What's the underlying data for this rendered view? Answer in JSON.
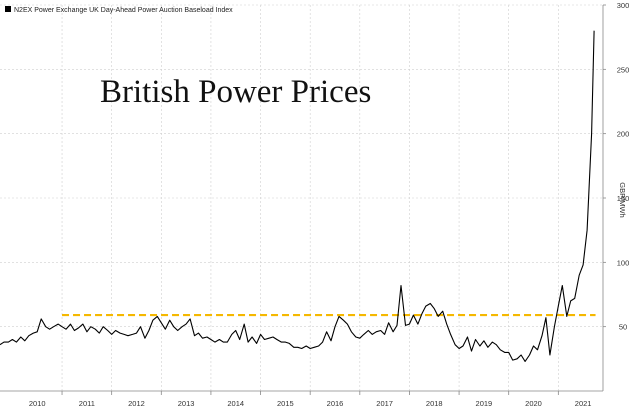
{
  "colors": {
    "background": "#ffffff",
    "grid": "#cfcfcf",
    "line": "#000000",
    "reference_line": "#f5b800",
    "text": "#333333"
  },
  "chart_data": {
    "type": "line",
    "title": "British Power Prices",
    "legend": {
      "label": "N2EX Power Exchange UK Day-Ahead Power Auction Baseload Index",
      "position": "top-left"
    },
    "ylabel": "GBP/MWh",
    "y_axis_side": "right",
    "ylim": [
      0,
      300
    ],
    "y_ticks": [
      50,
      100,
      150,
      200,
      250,
      300
    ],
    "xlim": [
      2009.75,
      2021.9
    ],
    "x_tick_labels": [
      {
        "label": "2010",
        "x": 2010.5
      },
      {
        "label": "2011",
        "x": 2011.5
      },
      {
        "label": "2012",
        "x": 2012.5
      },
      {
        "label": "2013",
        "x": 2013.5
      },
      {
        "label": "2014",
        "x": 2014.5
      },
      {
        "label": "2015",
        "x": 2015.5
      },
      {
        "label": "2016",
        "x": 2016.5
      },
      {
        "label": "2017",
        "x": 2017.5
      },
      {
        "label": "2018",
        "x": 2018.5
      },
      {
        "label": "2019",
        "x": 2019.5
      },
      {
        "label": "2020",
        "x": 2020.5
      },
      {
        "label": "2021",
        "x": 2021.5
      }
    ],
    "year_boundaries": [
      2011,
      2012,
      2013,
      2014,
      2015,
      2016,
      2017,
      2018,
      2019,
      2020,
      2021
    ],
    "grid": true,
    "reference_line": {
      "y": 59,
      "x_start": 2011.0,
      "x_end": 2021.75,
      "style": "dashed"
    },
    "series": [
      {
        "x": [
          2009.75,
          2009.83,
          2009.92,
          2010.0,
          2010.08,
          2010.17,
          2010.25,
          2010.33,
          2010.42,
          2010.5,
          2010.58,
          2010.67,
          2010.75,
          2010.83,
          2010.92,
          2011.0,
          2011.08,
          2011.17,
          2011.25,
          2011.33,
          2011.42,
          2011.5,
          2011.58,
          2011.67,
          2011.75,
          2011.83,
          2011.92,
          2012.0,
          2012.08,
          2012.17,
          2012.25,
          2012.33,
          2012.42,
          2012.5,
          2012.58,
          2012.67,
          2012.75,
          2012.83,
          2012.92,
          2013.0,
          2013.08,
          2013.17,
          2013.25,
          2013.33,
          2013.42,
          2013.5,
          2013.58,
          2013.67,
          2013.75,
          2013.83,
          2013.92,
          2014.0,
          2014.08,
          2014.17,
          2014.25,
          2014.33,
          2014.42,
          2014.5,
          2014.58,
          2014.67,
          2014.75,
          2014.83,
          2014.92,
          2015.0,
          2015.08,
          2015.17,
          2015.25,
          2015.33,
          2015.42,
          2015.5,
          2015.58,
          2015.67,
          2015.75,
          2015.83,
          2015.92,
          2016.0,
          2016.08,
          2016.17,
          2016.25,
          2016.33,
          2016.42,
          2016.5,
          2016.58,
          2016.67,
          2016.75,
          2016.83,
          2016.92,
          2017.0,
          2017.08,
          2017.17,
          2017.25,
          2017.33,
          2017.42,
          2017.5,
          2017.58,
          2017.67,
          2017.75,
          2017.83,
          2017.92,
          2018.0,
          2018.08,
          2018.17,
          2018.25,
          2018.33,
          2018.42,
          2018.5,
          2018.58,
          2018.67,
          2018.75,
          2018.83,
          2018.92,
          2019.0,
          2019.08,
          2019.17,
          2019.25,
          2019.33,
          2019.42,
          2019.5,
          2019.58,
          2019.67,
          2019.75,
          2019.83,
          2019.92,
          2020.0,
          2020.08,
          2020.17,
          2020.25,
          2020.33,
          2020.42,
          2020.5,
          2020.58,
          2020.67,
          2020.75,
          2020.83,
          2020.92,
          2021.0,
          2021.08,
          2021.17,
          2021.25,
          2021.33,
          2021.42,
          2021.5,
          2021.58,
          2021.67,
          2021.72
        ],
        "y": [
          36,
          38,
          38,
          40,
          38,
          42,
          39,
          43,
          45,
          46,
          56,
          50,
          48,
          50,
          52,
          50,
          48,
          52,
          47,
          49,
          52,
          46,
          50,
          48,
          45,
          50,
          47,
          44,
          47,
          45,
          44,
          43,
          44,
          45,
          50,
          41,
          47,
          55,
          58,
          53,
          48,
          55,
          50,
          47,
          50,
          52,
          56,
          43,
          45,
          41,
          42,
          40,
          38,
          40,
          38,
          38,
          44,
          47,
          40,
          52,
          38,
          42,
          37,
          44,
          40,
          41,
          42,
          40,
          38,
          38,
          37,
          34,
          34,
          33,
          35,
          33,
          34,
          35,
          38,
          46,
          39,
          50,
          58,
          55,
          52,
          46,
          42,
          41,
          44,
          47,
          44,
          46,
          47,
          44,
          53,
          46,
          51,
          82,
          51,
          52,
          59,
          52,
          60,
          66,
          68,
          64,
          58,
          62,
          52,
          44,
          36,
          33,
          35,
          42,
          31,
          40,
          35,
          39,
          34,
          38,
          36,
          32,
          30,
          30,
          24,
          25,
          28,
          23,
          28,
          35,
          32,
          43,
          57,
          28,
          50,
          66,
          82,
          58,
          70,
          72,
          90,
          98,
          125,
          200,
          280
        ]
      }
    ]
  }
}
